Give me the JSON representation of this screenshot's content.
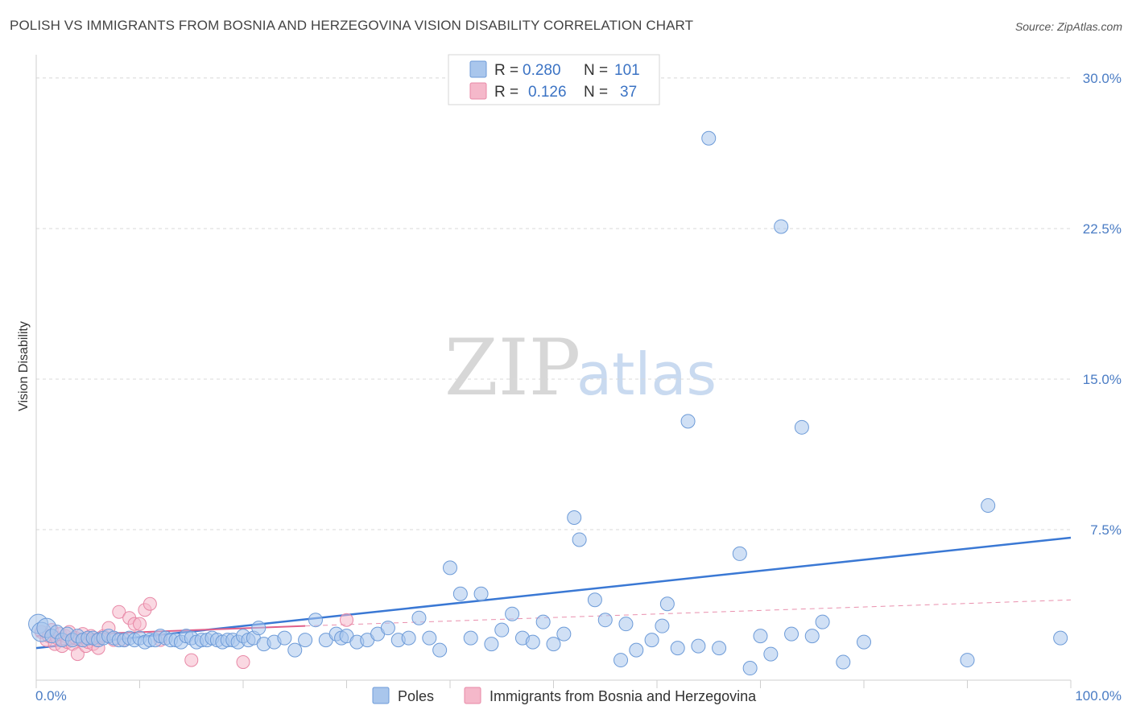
{
  "title": "POLISH VS IMMIGRANTS FROM BOSNIA AND HERZEGOVINA VISION DISABILITY CORRELATION CHART",
  "source": "Source: ZipAtlas.com",
  "watermark": {
    "zip": "ZIP",
    "atlas": "atlas"
  },
  "colors": {
    "poles_fill": "#a9c6ec",
    "poles_stroke": "#6d9bd8",
    "poles_line": "#3a78d4",
    "bosnia_fill": "#f5b8ca",
    "bosnia_stroke": "#e889a7",
    "bosnia_line": "#e0608a",
    "grid": "#d8d8d8",
    "tick": "#4a7cc4"
  },
  "legend": {
    "r_label": "R =",
    "n_label": "N =",
    "poles_r": "0.280",
    "poles_n": "101",
    "bosnia_r": "0.126",
    "bosnia_n": "37"
  },
  "chart_data": {
    "type": "scatter",
    "title": "POLISH VS IMMIGRANTS FROM BOSNIA AND HERZEGOVINA VISION DISABILITY CORRELATION CHART",
    "xlabel": "",
    "ylabel": "Vision Disability",
    "xlim": [
      0,
      100
    ],
    "ylim": [
      0,
      31
    ],
    "x_tick_labels": [
      "0.0%",
      "100.0%"
    ],
    "y_ticks": [
      7.5,
      15.0,
      22.5,
      30.0
    ],
    "y_tick_labels": [
      "7.5%",
      "15.0%",
      "22.5%",
      "30.0%"
    ],
    "grid": true,
    "series": [
      {
        "name": "Poles",
        "points": [
          [
            0.2,
            2.8
          ],
          [
            0.5,
            2.4
          ],
          [
            1.0,
            2.6
          ],
          [
            1.5,
            2.2
          ],
          [
            2.0,
            2.4
          ],
          [
            2.5,
            2.0
          ],
          [
            3.0,
            2.3
          ],
          [
            3.5,
            2.0
          ],
          [
            4.0,
            2.2
          ],
          [
            4.5,
            2.0
          ],
          [
            5.0,
            2.1
          ],
          [
            5.5,
            2.1
          ],
          [
            6.0,
            2.0
          ],
          [
            6.5,
            2.1
          ],
          [
            7.0,
            2.2
          ],
          [
            7.5,
            2.1
          ],
          [
            8.0,
            2.0
          ],
          [
            8.5,
            2.0
          ],
          [
            9.0,
            2.1
          ],
          [
            9.5,
            2.0
          ],
          [
            10.0,
            2.1
          ],
          [
            10.5,
            1.9
          ],
          [
            11.0,
            2.0
          ],
          [
            11.5,
            2.0
          ],
          [
            12.0,
            2.2
          ],
          [
            12.5,
            2.1
          ],
          [
            13.0,
            2.0
          ],
          [
            13.5,
            2.0
          ],
          [
            14.0,
            1.9
          ],
          [
            14.5,
            2.2
          ],
          [
            15.0,
            2.1
          ],
          [
            15.5,
            1.9
          ],
          [
            16.0,
            2.0
          ],
          [
            16.5,
            2.0
          ],
          [
            17.0,
            2.1
          ],
          [
            17.5,
            2.0
          ],
          [
            18.0,
            1.9
          ],
          [
            18.5,
            2.0
          ],
          [
            19.0,
            2.0
          ],
          [
            19.5,
            1.9
          ],
          [
            20.0,
            2.2
          ],
          [
            20.5,
            2.0
          ],
          [
            21.0,
            2.1
          ],
          [
            21.5,
            2.6
          ],
          [
            22.0,
            1.8
          ],
          [
            23.0,
            1.9
          ],
          [
            24.0,
            2.1
          ],
          [
            25.0,
            1.5
          ],
          [
            26.0,
            2.0
          ],
          [
            27.0,
            3.0
          ],
          [
            28.0,
            2.0
          ],
          [
            29.0,
            2.3
          ],
          [
            29.5,
            2.1
          ],
          [
            30.0,
            2.2
          ],
          [
            31.0,
            1.9
          ],
          [
            32.0,
            2.0
          ],
          [
            33.0,
            2.3
          ],
          [
            34.0,
            2.6
          ],
          [
            35.0,
            2.0
          ],
          [
            36.0,
            2.1
          ],
          [
            37.0,
            3.1
          ],
          [
            38.0,
            2.1
          ],
          [
            39.0,
            1.5
          ],
          [
            40.0,
            5.6
          ],
          [
            41.0,
            4.3
          ],
          [
            42.0,
            2.1
          ],
          [
            43.0,
            4.3
          ],
          [
            44.0,
            1.8
          ],
          [
            45.0,
            2.5
          ],
          [
            46.0,
            3.3
          ],
          [
            47.0,
            2.1
          ],
          [
            48.0,
            1.9
          ],
          [
            49.0,
            2.9
          ],
          [
            50.0,
            1.8
          ],
          [
            51.0,
            2.3
          ],
          [
            52.0,
            8.1
          ],
          [
            52.5,
            7.0
          ],
          [
            54.0,
            4.0
          ],
          [
            55.0,
            3.0
          ],
          [
            56.5,
            1.0
          ],
          [
            57.0,
            2.8
          ],
          [
            58.0,
            1.5
          ],
          [
            59.5,
            2.0
          ],
          [
            60.5,
            2.7
          ],
          [
            61.0,
            3.8
          ],
          [
            62.0,
            1.6
          ],
          [
            63.0,
            12.9
          ],
          [
            64.0,
            1.7
          ],
          [
            65.0,
            27.0
          ],
          [
            66.0,
            1.6
          ],
          [
            68.0,
            6.3
          ],
          [
            69.0,
            0.6
          ],
          [
            70.0,
            2.2
          ],
          [
            71.0,
            1.3
          ],
          [
            72.0,
            22.6
          ],
          [
            73.0,
            2.3
          ],
          [
            74.0,
            12.6
          ],
          [
            75.0,
            2.2
          ],
          [
            76.0,
            2.9
          ],
          [
            78.0,
            0.9
          ],
          [
            80.0,
            1.9
          ],
          [
            90.0,
            1.0
          ],
          [
            92.0,
            8.7
          ],
          [
            99.0,
            2.1
          ]
        ],
        "trend": {
          "x": [
            0,
            100
          ],
          "y": [
            1.6,
            7.1
          ]
        }
      },
      {
        "name": "Immigrants from Bosnia and Herzegovina",
        "points": [
          [
            0.5,
            2.4
          ],
          [
            1.0,
            2.0
          ],
          [
            1.2,
            2.2
          ],
          [
            1.5,
            2.5
          ],
          [
            1.8,
            1.8
          ],
          [
            2.0,
            2.1
          ],
          [
            2.3,
            2.3
          ],
          [
            2.5,
            1.7
          ],
          [
            2.8,
            2.2
          ],
          [
            3.0,
            1.9
          ],
          [
            3.2,
            2.4
          ],
          [
            3.5,
            1.8
          ],
          [
            3.8,
            2.1
          ],
          [
            4.0,
            1.3
          ],
          [
            4.2,
            2.0
          ],
          [
            4.5,
            2.3
          ],
          [
            4.8,
            1.7
          ],
          [
            5.0,
            1.9
          ],
          [
            5.3,
            2.2
          ],
          [
            5.5,
            1.8
          ],
          [
            5.8,
            2.0
          ],
          [
            6.0,
            1.6
          ],
          [
            6.2,
            2.1
          ],
          [
            6.5,
            2.2
          ],
          [
            7.0,
            2.6
          ],
          [
            7.5,
            2.0
          ],
          [
            8.0,
            3.4
          ],
          [
            8.5,
            2.0
          ],
          [
            9.0,
            3.1
          ],
          [
            9.5,
            2.8
          ],
          [
            10.0,
            2.8
          ],
          [
            10.5,
            3.5
          ],
          [
            11.0,
            3.8
          ],
          [
            12.0,
            2.0
          ],
          [
            15.0,
            1.0
          ],
          [
            20.0,
            0.9
          ],
          [
            30.0,
            3.0
          ]
        ],
        "trend": {
          "x": [
            0,
            26
          ],
          "y": [
            2.2,
            2.7
          ]
        },
        "trend_extension": {
          "x": [
            26,
            100
          ],
          "y": [
            2.7,
            4.0
          ]
        }
      }
    ]
  },
  "bottom_legend": {
    "poles": "Poles",
    "bosnia": "Immigrants from Bosnia and Herzegovina"
  }
}
